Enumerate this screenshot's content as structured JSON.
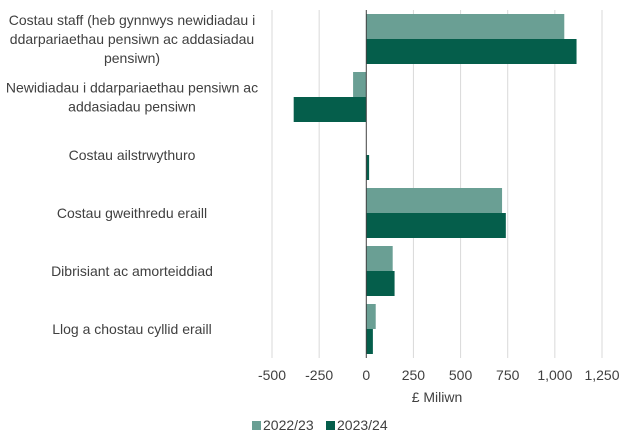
{
  "chart_data": {
    "type": "bar",
    "orientation": "horizontal",
    "categories": [
      [
        "Costau staff (heb gynnwys newidiadau i",
        "ddarpariaethau pensiwn ac addasiadau",
        "pensiwn)"
      ],
      [
        "Newidiadau i ddarpariaethau pensiwn ac",
        "addasiadau pensiwn"
      ],
      [
        "Costau ailstrwythuro"
      ],
      [
        "Costau gweithredu eraill"
      ],
      [
        "Dibrisiant ac amorteiddiad"
      ],
      [
        "Llog a chostau cyllid eraill"
      ]
    ],
    "series": [
      {
        "name": "2022/23",
        "color": "#6a9f94",
        "values": [
          1050,
          -70,
          0,
          720,
          140,
          50
        ]
      },
      {
        "name": "2023/24",
        "color": "#055e4b",
        "values": [
          1115,
          -385,
          15,
          740,
          150,
          35
        ]
      }
    ],
    "xlabel": "£ Miliwn",
    "xlim": [
      -500,
      1250
    ],
    "xticks": [
      -500,
      -250,
      0,
      250,
      500,
      750,
      1000,
      1250
    ],
    "xtick_labels": [
      "-500",
      "-250",
      "0",
      "250",
      "500",
      "750",
      "1,000",
      "1,250"
    ],
    "grid": {
      "vertical": true,
      "color": "#d9d9d9"
    },
    "legend": {
      "position": "bottom"
    }
  }
}
